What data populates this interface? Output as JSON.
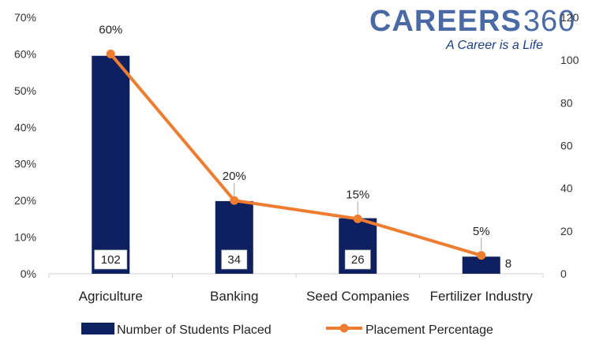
{
  "logo": {
    "title": "CAREERS",
    "number": "360",
    "tagline": "A Career is a Life"
  },
  "chart_data": {
    "type": "bar",
    "categories": [
      "Agriculture",
      "Banking",
      "Seed Companies",
      "Fertilizer Industry"
    ],
    "series": [
      {
        "name": "Number of Students Placed",
        "type": "bar",
        "axis": "right",
        "values": [
          102,
          34,
          26,
          8
        ],
        "data_labels": [
          "102",
          "34",
          "26",
          "8"
        ],
        "color": "#0e2060"
      },
      {
        "name": "Placement Percentage",
        "type": "line",
        "axis": "left",
        "values": [
          0.6,
          0.2,
          0.15,
          0.05
        ],
        "data_labels": [
          "60%",
          "20%",
          "15%",
          "5%"
        ],
        "color": "#ed7d31"
      }
    ],
    "left_axis": {
      "ylim": [
        0,
        0.7
      ],
      "ticks": [
        "0%",
        "10%",
        "20%",
        "30%",
        "40%",
        "50%",
        "60%",
        "70%"
      ]
    },
    "right_axis": {
      "ylim": [
        0,
        120
      ],
      "ticks": [
        "0",
        "20",
        "40",
        "60",
        "80",
        "100",
        "120"
      ]
    },
    "grid": false,
    "legend_position": "bottom"
  }
}
